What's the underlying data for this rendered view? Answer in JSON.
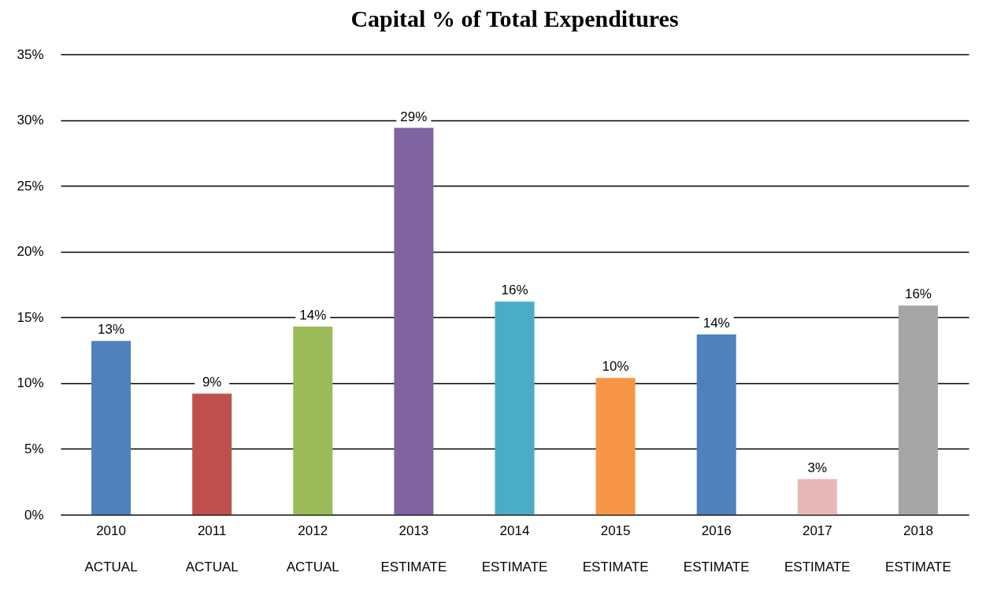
{
  "chart_data": {
    "type": "bar",
    "title": "Capital % of Total Expenditures",
    "categories": [
      "2010 ACTUAL",
      "2011 ACTUAL",
      "2012 ACTUAL",
      "2013 ESTIMATE",
      "2014 ESTIMATE",
      "2015 ESTIMATE",
      "2016 ESTIMATE",
      "2017 ESTIMATE",
      "2018 ESTIMATE"
    ],
    "values": [
      13.2,
      9.2,
      14.3,
      29.4,
      16.2,
      10.4,
      13.7,
      2.7,
      15.9
    ],
    "value_labels": [
      "13%",
      "9%",
      "14%",
      "29%",
      "16%",
      "10%",
      "14%",
      "3%",
      "16%"
    ],
    "colors": [
      "#4f81bd",
      "#c0504d",
      "#9bbb59",
      "#8064a2",
      "#4bacc6",
      "#f79646",
      "#4f81bd",
      "#e6b9b8",
      "#a5a5a5"
    ],
    "ylim": [
      0,
      35
    ],
    "yticks": [
      {
        "value": 0,
        "label": "0%"
      },
      {
        "value": 5,
        "label": "5%"
      },
      {
        "value": 10,
        "label": "10%"
      },
      {
        "value": 15,
        "label": "15%"
      },
      {
        "value": 20,
        "label": "20%"
      },
      {
        "value": 25,
        "label": "25%"
      },
      {
        "value": 30,
        "label": "30%"
      },
      {
        "value": 35,
        "label": "35%"
      }
    ],
    "grid": "y"
  }
}
